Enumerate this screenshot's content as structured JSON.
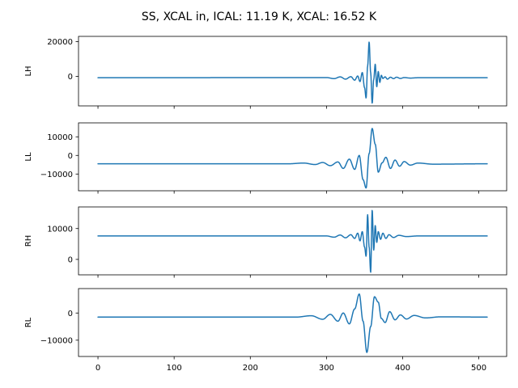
{
  "figure_title": "SS, XCAL in, ICAL: 11.19 K, XCAL: 16.52 K",
  "colors": {
    "line": "#1f77b4"
  },
  "chart_data": [
    {
      "type": "line",
      "ylabel": "LH",
      "xlim": [
        -25.55,
        536.55
      ],
      "ylim": [
        -17000,
        23000
      ],
      "x_ticks": [
        0,
        100,
        200,
        300,
        400,
        500
      ],
      "x_tick_labels": [],
      "y_ticks": [
        0,
        20000
      ],
      "y_tick_labels": [
        "0",
        "20000"
      ],
      "series": [
        {
          "baseline": -800,
          "x": [
            0,
            300,
            310,
            318,
            325,
            332,
            337,
            341,
            344,
            347,
            350,
            352,
            354,
            356,
            358,
            360,
            362,
            364,
            366,
            368,
            370,
            372,
            374,
            377,
            380,
            384,
            388,
            392,
            397,
            402,
            410,
            420,
            511
          ],
          "y": [
            -800,
            -700,
            -1300,
            -300,
            -1600,
            -200,
            -2200,
            200,
            -3000,
            2200,
            -6500,
            -12500,
            6000,
            19800,
            2000,
            -15500,
            -1800,
            7000,
            -6000,
            2800,
            -3500,
            600,
            -1200,
            -300,
            -1600,
            -500,
            -1300,
            -500,
            -1200,
            -700,
            -1000,
            -800,
            -800
          ]
        }
      ]
    },
    {
      "type": "line",
      "ylabel": "LL",
      "xlim": [
        -25.55,
        536.55
      ],
      "ylim": [
        -19000,
        17500
      ],
      "x_ticks": [
        0,
        100,
        200,
        300,
        400,
        500
      ],
      "x_tick_labels": [],
      "y_ticks": [
        -10000,
        0,
        10000
      ],
      "y_tick_labels": [
        "−10000",
        "0",
        "10000"
      ],
      "series": [
        {
          "baseline": -4500,
          "x": [
            0,
            250,
            270,
            285,
            295,
            305,
            315,
            322,
            330,
            337,
            343,
            348,
            352,
            356,
            360,
            364,
            368,
            373,
            378,
            384,
            390,
            396,
            402,
            410,
            420,
            440,
            511
          ],
          "y": [
            -4500,
            -4500,
            -4100,
            -4900,
            -3800,
            -5500,
            -3500,
            -7000,
            -2000,
            -7500,
            0,
            -13000,
            -17500,
            1000,
            14500,
            6000,
            -9000,
            -4000,
            -1000,
            -7000,
            -2500,
            -5800,
            -3300,
            -5200,
            -4100,
            -4700,
            -4500
          ]
        }
      ]
    },
    {
      "type": "line",
      "ylabel": "RH",
      "xlim": [
        -25.55,
        536.55
      ],
      "ylim": [
        -5000,
        17000
      ],
      "x_ticks": [
        0,
        100,
        200,
        300,
        400,
        500
      ],
      "x_tick_labels": [],
      "y_ticks": [
        0,
        10000
      ],
      "y_tick_labels": [
        "0",
        "10000"
      ],
      "series": [
        {
          "baseline": 7600,
          "x": [
            0,
            300,
            310,
            318,
            325,
            332,
            337,
            341,
            344,
            347,
            350,
            352,
            354,
            356,
            358,
            360,
            362,
            364,
            366,
            368,
            371,
            374,
            378,
            382,
            388,
            395,
            405,
            420,
            511
          ],
          "y": [
            7600,
            7600,
            7200,
            7900,
            7000,
            8000,
            6800,
            8500,
            6000,
            9000,
            4000,
            1000,
            14500,
            4000,
            -4200,
            16000,
            3000,
            11000,
            5500,
            9000,
            6500,
            8500,
            6800,
            8000,
            7100,
            7800,
            7400,
            7600,
            7600
          ]
        }
      ]
    },
    {
      "type": "line",
      "ylabel": "RL",
      "xlim": [
        -25.55,
        536.55
      ],
      "ylim": [
        -16000,
        9000
      ],
      "x_ticks": [
        0,
        100,
        200,
        300,
        400,
        500
      ],
      "x_tick_labels": [
        "0",
        "100",
        "200",
        "300",
        "400",
        "500"
      ],
      "y_ticks": [
        -10000,
        0
      ],
      "y_tick_labels": [
        "−10000",
        "0"
      ],
      "series": [
        {
          "baseline": -1500,
          "x": [
            0,
            260,
            280,
            295,
            305,
            315,
            322,
            330,
            337,
            343,
            348,
            353,
            358,
            363,
            368,
            372,
            377,
            383,
            390,
            397,
            405,
            415,
            430,
            450,
            511
          ],
          "y": [
            -1500,
            -1500,
            -1000,
            -2300,
            -500,
            -3000,
            0,
            -4000,
            1500,
            7000,
            -3000,
            -14500,
            -5000,
            6000,
            4000,
            -2000,
            -3500,
            500,
            -2500,
            -700,
            -2200,
            -900,
            -1800,
            -1400,
            -1500
          ]
        }
      ]
    }
  ]
}
